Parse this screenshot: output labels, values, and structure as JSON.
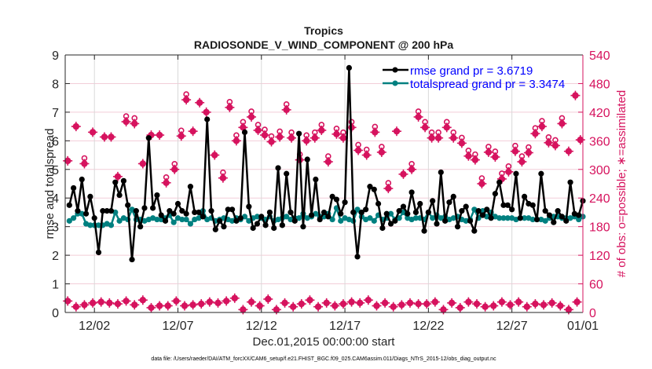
{
  "chart_data": {
    "type": "line",
    "title": "Tropics",
    "subtitle": "RADIOSONDE_V_WIND_COMPONENT @ 200 hPa",
    "xlabel": "Dec.01,2015 00:00:00 start",
    "ylabel": "rmse and totalspread",
    "y2label": "# of obs: o=possible; ∗=assimilated",
    "footnote": "data file: /Users/raeder/DAI/ATM_forcXX/CAM6_setup/f.e21.FHIST_BGC.f09_025.CAM6assim.011/Diags_NTrS_2015-12/obs_diag_output.nc",
    "xlim_days": [
      0.25,
      31.25
    ],
    "ylim": [
      0,
      9
    ],
    "y2lim": [
      0,
      540
    ],
    "yticks": [
      "0",
      "1",
      "2",
      "3",
      "4",
      "5",
      "6",
      "7",
      "8",
      "9"
    ],
    "y2ticks": [
      "0",
      "60",
      "120",
      "180",
      "240",
      "300",
      "360",
      "420",
      "480",
      "540"
    ],
    "xticks": [
      {
        "day": 2,
        "label": "12/02"
      },
      {
        "day": 7,
        "label": "12/07"
      },
      {
        "day": 12,
        "label": "12/12"
      },
      {
        "day": 17,
        "label": "12/17"
      },
      {
        "day": 22,
        "label": "12/22"
      },
      {
        "day": 27,
        "label": "12/27"
      },
      {
        "day": 32,
        "label": "01/01"
      }
    ],
    "grid": true,
    "legend_position": "top-right",
    "colors": {
      "rmse": "#000000",
      "spread": "#008080",
      "obs": "#d6135e",
      "grid": "#f2cdd8",
      "vgrid": "#d9d9d9",
      "legend_text": "#0000ff"
    },
    "series": [
      {
        "name": "rmse grand pr = 3.6719",
        "key": "rmse",
        "x_start": 0.5,
        "x_step": 0.25,
        "values": [
          3.75,
          4.35,
          3.55,
          4.65,
          3.45,
          4.05,
          3.3,
          2.1,
          3.55,
          3.55,
          3.55,
          4.55,
          4.1,
          4.6,
          3.75,
          1.85,
          3.55,
          3.0,
          3.65,
          6.1,
          3.65,
          4.1,
          3.4,
          3.2,
          3.55,
          3.45,
          3.8,
          3.55,
          3.45,
          4.4,
          3.5,
          3.5,
          3.35,
          6.75,
          3.55,
          2.9,
          3.2,
          3.0,
          3.6,
          3.6,
          3.2,
          3.3,
          6.3,
          3.7,
          2.95,
          3.1,
          3.35,
          3.05,
          3.5,
          2.95,
          5.05,
          3.05,
          4.85,
          3.5,
          3.2,
          6.25,
          3.0,
          5.35,
          3.4,
          4.65,
          3.25,
          3.5,
          3.35,
          4.05,
          3.95,
          3.45,
          3.85,
          8.55,
          3.5,
          1.95,
          3.5,
          3.6,
          4.4,
          4.3,
          3.8,
          2.95,
          3.45,
          3.1,
          3.2,
          3.55,
          3.7,
          3.45,
          4.2,
          3.5,
          3.8,
          2.85,
          3.5,
          3.9,
          3.1,
          4.9,
          3.2,
          3.85,
          4.05,
          3.0,
          3.55,
          3.7,
          3.2,
          2.85,
          3.55,
          3.4,
          3.6,
          3.3,
          4.15,
          4.55,
          3.75,
          3.75,
          3.6,
          4.85,
          3.3,
          4.05,
          3.8,
          3.75,
          3.25,
          4.85,
          3.55,
          3.4,
          3.15,
          3.55,
          3.35,
          3.2,
          4.55,
          3.45,
          3.4,
          3.9,
          3.25,
          4.65,
          3.95,
          3.3,
          3.0,
          3.35,
          4.0,
          3.5,
          3.55,
          3.9,
          3.75,
          3.3,
          5.05,
          3.9,
          3.95,
          3.6,
          2.85,
          3.6,
          3.7,
          3.75,
          3.55,
          3.65,
          6.3,
          3.5,
          3.35,
          4.75,
          4.25,
          3.5,
          3.55,
          3.6,
          3.8,
          3.65,
          3.45,
          3.6,
          3.5,
          3.55,
          3.55,
          3.6,
          3.75,
          3.75,
          4.1,
          3.45,
          3.95,
          3.55,
          3.85
        ]
      },
      {
        "name": "totalspread grand pr = 3.3474",
        "key": "spread",
        "x_start": 0.5,
        "x_step": 0.25,
        "values": [
          3.2,
          3.3,
          3.45,
          3.45,
          3.1,
          3.05,
          3.05,
          3.05,
          3.05,
          3.1,
          3.05,
          3.5,
          3.2,
          3.3,
          3.25,
          3.6,
          3.25,
          3.25,
          3.2,
          3.25,
          3.3,
          3.25,
          3.25,
          3.3,
          3.4,
          3.15,
          3.3,
          3.25,
          3.25,
          3.1,
          3.25,
          3.3,
          3.55,
          3.25,
          3.3,
          3.2,
          3.25,
          3.3,
          3.25,
          3.2,
          3.3,
          3.25,
          3.35,
          3.2,
          3.3,
          3.35,
          3.3,
          3.25,
          3.35,
          3.2,
          3.25,
          3.3,
          3.35,
          3.25,
          3.3,
          3.3,
          3.45,
          3.3,
          3.35,
          3.45,
          3.35,
          3.35,
          3.45,
          3.25,
          3.65,
          3.2,
          3.3,
          3.25,
          3.2,
          3.6,
          3.35,
          3.25,
          3.3,
          3.2,
          3.4,
          3.25,
          3.3,
          3.45,
          3.25,
          3.3,
          3.5,
          3.3,
          3.25,
          3.3,
          3.3,
          3.25,
          3.5,
          3.3,
          3.4,
          3.3,
          3.35,
          3.25,
          3.3,
          3.35,
          3.25,
          3.2,
          3.25,
          3.6,
          3.3,
          3.55,
          3.35,
          3.5,
          3.35,
          3.3,
          3.3,
          3.3,
          3.3,
          3.25,
          3.3,
          3.3,
          3.3,
          3.25,
          3.25,
          3.25,
          3.2,
          3.3,
          3.35,
          3.35,
          3.3,
          3.3,
          3.3,
          3.35,
          3.25,
          3.35,
          3.4,
          3.35,
          3.3,
          3.3,
          3.35,
          3.3,
          3.45,
          3.5,
          3.5,
          3.35,
          4.2,
          3.3,
          3.3,
          3.4,
          3.4,
          3.45,
          3.4,
          3.35,
          3.3,
          3.35,
          3.5,
          3.35,
          3.35,
          3.55,
          3.3,
          3.35,
          3.4,
          3.3,
          3.4,
          3.35,
          3.3,
          3.3,
          3.35,
          3.35,
          3.35,
          3.35,
          3.35,
          3.3,
          3.35,
          3.3,
          3.9,
          3.3,
          3.3,
          3.4
        ]
      },
      {
        "name": "# obs possible/assimilated (upper)",
        "key": "obs_high",
        "x": [
          0.4,
          0.9,
          1.4,
          1.9,
          2.6,
          3.0,
          3.4,
          3.9,
          4.4,
          4.9,
          5.4,
          5.9,
          6.3,
          6.8,
          7.2,
          7.5,
          7.9,
          8.3,
          8.7,
          9.2,
          9.7,
          10.1,
          10.5,
          10.9,
          11.4,
          11.8,
          12.2,
          12.6,
          13.1,
          13.5,
          13.8,
          14.3,
          14.7,
          15.2,
          15.6,
          16.0,
          16.5,
          16.9,
          17.4,
          17.8,
          18.3,
          18.8,
          19.2,
          19.6,
          20.1,
          20.5,
          21.0,
          21.4,
          21.8,
          22.2,
          22.6,
          23.1,
          23.5,
          24.0,
          24.4,
          24.8,
          25.2,
          25.6,
          26.0,
          26.4,
          26.8,
          27.2,
          27.6,
          28.0,
          28.4,
          28.8,
          29.2,
          29.6,
          30.0,
          30.4,
          30.8,
          31.1
        ],
        "values": [
          318,
          390,
          312,
          378,
          368,
          368,
          285,
          400,
          396,
          312,
          372,
          372,
          272,
          300,
          370,
          446,
          380,
          440,
          420,
          330,
          282,
          430,
          360,
          388,
          410,
          382,
          372,
          358,
          368,
          425,
          366,
          320,
          360,
          366,
          382,
          316,
          374,
          366,
          388,
          340,
          330,
          378,
          336,
          260,
          380,
          290,
          300,
          410,
          388,
          366,
          366,
          388,
          366,
          355,
          328,
          320,
          270,
          336,
          326,
          280,
          295,
          338,
          316,
          335,
          375,
          390,
          356,
          350,
          396,
          338,
          455,
          362
        ],
        "possible": [
          0,
          0,
          1,
          0,
          0,
          0,
          0,
          1,
          1,
          0,
          0,
          0,
          1,
          1,
          1,
          1,
          0,
          0,
          0,
          0,
          1,
          1,
          1,
          1,
          1,
          1,
          1,
          1,
          1,
          1,
          1,
          1,
          1,
          1,
          1,
          1,
          1,
          1,
          1,
          1,
          1,
          1,
          1,
          1,
          0,
          0,
          1,
          1,
          1,
          1,
          1,
          1,
          1,
          1,
          1,
          1,
          1,
          1,
          1,
          1,
          1,
          1,
          1,
          1,
          1,
          1,
          1,
          1,
          1,
          0,
          0,
          0
        ]
      },
      {
        "name": "# obs possible/assimilated (lower)",
        "key": "obs_low",
        "x_start": 0.4,
        "x_step": 0.5,
        "values": [
          24,
          12,
          16,
          20,
          22,
          20,
          18,
          24,
          16,
          26,
          10,
          14,
          14,
          24,
          14,
          16,
          18,
          22,
          20,
          24,
          30,
          6,
          22,
          14,
          28,
          6,
          20,
          12,
          18,
          26,
          12,
          20,
          14,
          18,
          22,
          20,
          26,
          14,
          20,
          12,
          16,
          20,
          18,
          18,
          22,
          6,
          20,
          10,
          22,
          18,
          12,
          14,
          22,
          16,
          22,
          12,
          18,
          16,
          20,
          14,
          6,
          22,
          12,
          20,
          22,
          18,
          20,
          6,
          18,
          6,
          16,
          6,
          14,
          6,
          18,
          8,
          16,
          10,
          8,
          4
        ]
      }
    ]
  }
}
